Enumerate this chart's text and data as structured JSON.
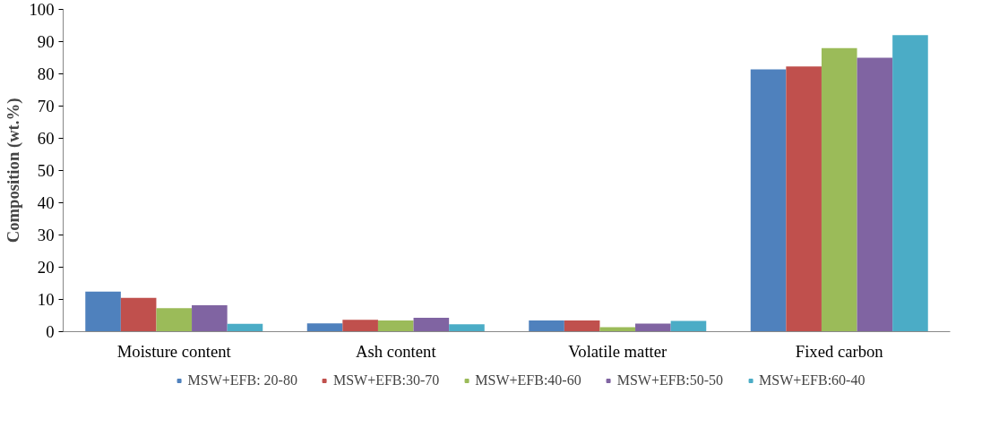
{
  "chart_data": {
    "type": "bar",
    "ylabel": "Composition (wt.%)",
    "categories": [
      "Moisture content",
      "Ash content",
      "Volatile matter",
      "Fixed carbon"
    ],
    "series": [
      {
        "name": "MSW+EFB: 20-80",
        "color": "#4f81bd",
        "values": [
          12.4,
          2.6,
          3.5,
          81.4
        ]
      },
      {
        "name": "MSW+EFB:30-70",
        "color": "#c0504d",
        "values": [
          10.5,
          3.7,
          3.5,
          82.3
        ]
      },
      {
        "name": "MSW+EFB:40-60",
        "color": "#9bbb59",
        "values": [
          7.3,
          3.5,
          1.4,
          88
        ]
      },
      {
        "name": "MSW+EFB:50-50",
        "color": "#8064a2",
        "values": [
          8.2,
          4.3,
          2.5,
          85
        ]
      },
      {
        "name": "MSW+EFB:60-40",
        "color": "#4bacc6",
        "values": [
          2.4,
          2.3,
          3.3,
          92
        ]
      }
    ],
    "ylim": [
      0,
      100
    ],
    "yticks": [
      0,
      10,
      20,
      30,
      40,
      50,
      60,
      70,
      80,
      90,
      100
    ],
    "grid": false,
    "legend": "bottom"
  }
}
